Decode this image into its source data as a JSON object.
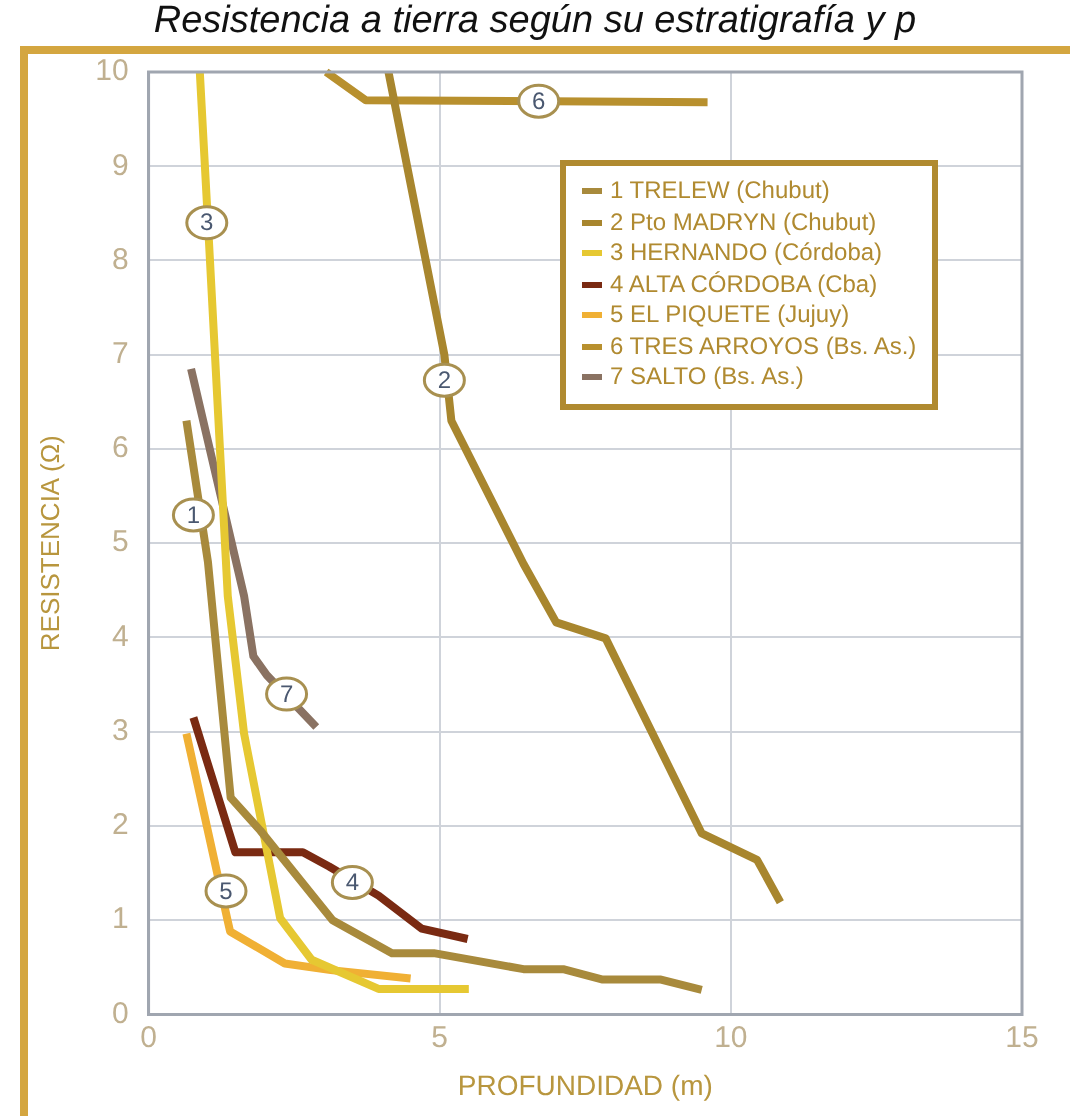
{
  "chart_data": {
    "type": "line",
    "title": "Resistencia a tierra según su estratigrafía y p",
    "xlabel": "PROFUNDIDAD (m)",
    "ylabel": "RESISTENCIA (Ω)",
    "xlim": [
      0,
      15
    ],
    "xticks": [
      0,
      5,
      10,
      15
    ],
    "ylim": [
      0,
      10
    ],
    "yticks": [
      0,
      1,
      2,
      3,
      4,
      5,
      6,
      7,
      8,
      9,
      10
    ],
    "grid": true,
    "legend": "top right",
    "marker": "none",
    "line_style": "solid",
    "series": [
      {
        "name": "1 TRELEW (Chubut)",
        "color": "#a88a3c",
        "x": [
          0.65,
          1.02,
          1.41,
          1.92,
          3.16,
          4.18,
          4.9,
          6.44,
          7.12,
          7.8,
          8.8,
          9.5
        ],
        "values": [
          6.3,
          4.8,
          2.3,
          1.95,
          1.0,
          0.65,
          0.65,
          0.48,
          0.48,
          0.37,
          0.37,
          0.26
        ]
      },
      {
        "name": "2 Pto MADRYN (Chubut)",
        "color": "#a8862e",
        "x": [
          4.12,
          5.08,
          5.2,
          6.44,
          7.0,
          7.85,
          9.5,
          10.45,
          10.85
        ],
        "values": [
          10,
          7.0,
          6.3,
          4.78,
          4.16,
          3.99,
          1.92,
          1.64,
          1.19
        ]
      },
      {
        "name": "3 HERNANDO (Córdoba)",
        "color": "#e6c832",
        "x": [
          0.88,
          1.02,
          1.36,
          1.64,
          2.26,
          2.8,
          3.95,
          5.5
        ],
        "values": [
          10,
          8.4,
          4.44,
          2.98,
          1.02,
          0.58,
          0.27,
          0.27
        ]
      },
      {
        "name": "4 ALTA CÓRDOBA (Cba)",
        "color": "#7a2a12",
        "x": [
          0.77,
          1.49,
          2.65,
          3.1,
          3.95,
          4.69,
          5.48
        ],
        "values": [
          3.15,
          1.72,
          1.72,
          1.57,
          1.26,
          0.91,
          0.8
        ]
      },
      {
        "name": "5 EL PIQUETE (Jujuy)",
        "color": "#f0b034",
        "x": [
          0.65,
          1.36,
          1.4,
          2.34,
          3.13,
          4.5
        ],
        "values": [
          2.98,
          0.99,
          0.88,
          0.54,
          0.47,
          0.38
        ]
      },
      {
        "name": "6 TRES ARROYOS (Bs. As.)",
        "color": "#b8902e",
        "x": [
          3.05,
          3.73,
          9.6
        ],
        "values": [
          10,
          9.7,
          9.68
        ]
      },
      {
        "name": "7 SALTO (Bs. As.)",
        "color": "#8a7262",
        "x": [
          0.73,
          1.64,
          1.8,
          2.03,
          2.88
        ],
        "values": [
          6.85,
          4.44,
          3.8,
          3.6,
          3.05
        ]
      }
    ],
    "annotations": [
      {
        "text": "1",
        "x": 0.77,
        "y": 5.3
      },
      {
        "text": "2",
        "x": 5.08,
        "y": 6.73
      },
      {
        "text": "3",
        "x": 1.0,
        "y": 8.4
      },
      {
        "text": "4",
        "x": 3.5,
        "y": 1.4
      },
      {
        "text": "5",
        "x": 1.33,
        "y": 1.31
      },
      {
        "text": "6",
        "x": 6.7,
        "y": 9.69
      },
      {
        "text": "7",
        "x": 2.37,
        "y": 3.4
      }
    ]
  }
}
